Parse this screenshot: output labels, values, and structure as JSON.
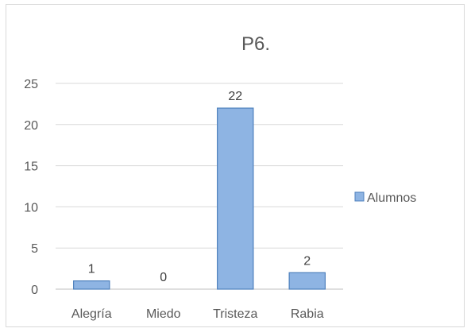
{
  "chart_data": {
    "type": "bar",
    "title": "P6.",
    "categories": [
      "Alegría",
      "Miedo",
      "Tristeza",
      "Rabia"
    ],
    "series": [
      {
        "name": "Alumnos",
        "values": [
          1,
          0,
          22,
          2
        ],
        "color": "#8eb4e3",
        "edge": "#4f81bd"
      }
    ],
    "ylim": [
      0,
      25
    ],
    "yticks": [
      0,
      5,
      10,
      15,
      20,
      25
    ],
    "grid": true,
    "legend": "right"
  }
}
